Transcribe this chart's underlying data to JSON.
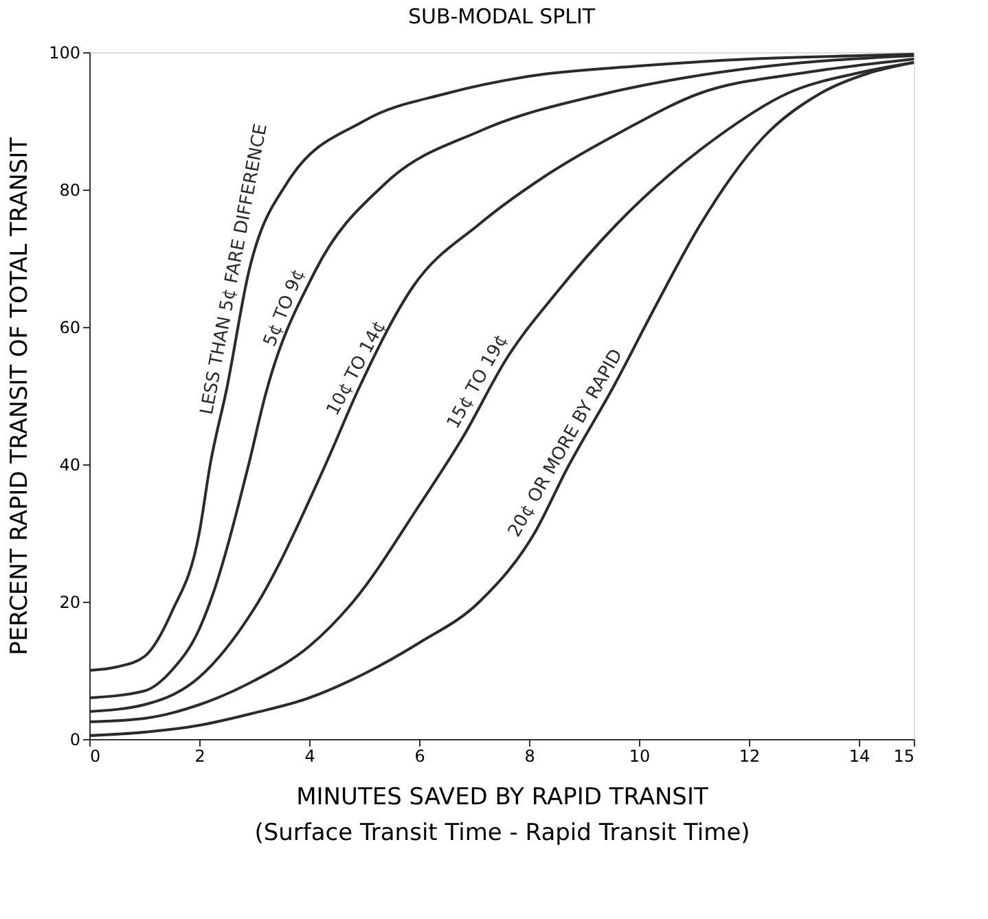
{
  "chart_data": {
    "type": "line",
    "title": "SUB-MODAL SPLIT",
    "xlabel": "MINUTES SAVED BY RAPID TRANSIT\n(Surface Transit Time - Rapid Transit Time)",
    "ylabel": "PERCENT RAPID TRANSIT OF TOTAL TRANSIT",
    "xlim": [
      0,
      15
    ],
    "ylim": [
      0,
      100
    ],
    "xticks": [
      0,
      2,
      4,
      6,
      8,
      10,
      12,
      14,
      15
    ],
    "yticks": [
      0,
      20,
      40,
      60,
      80,
      100
    ],
    "grid": false,
    "marker": "none",
    "line_style": "solid",
    "series": [
      {
        "color": "#2b2b2b",
        "x": [
          0,
          0.5,
          1,
          1.5,
          2,
          2.2,
          2.5,
          2.9,
          3.6,
          5,
          6.5,
          8,
          10,
          12,
          14,
          15
        ],
        "values": [
          10,
          10.5,
          12,
          18.5,
          30,
          40,
          51,
          68,
          81,
          90,
          94,
          96.5,
          98,
          99,
          99.5,
          99.7
        ]
      },
      {
        "color": "#2b2b2b",
        "x": [
          0,
          1,
          1.5,
          2,
          2.2,
          2.9,
          3.2,
          4.1,
          5.4,
          7.1,
          9.4,
          11,
          13,
          15
        ],
        "values": [
          6,
          7,
          10,
          16,
          20,
          40,
          50,
          68,
          81,
          88.5,
          94,
          96.5,
          98.5,
          99.5
        ]
      },
      {
        "color": "#2b2b2b",
        "x": [
          0,
          1,
          2,
          3,
          4.3,
          4.9,
          5.9,
          7.1,
          8.3,
          9.7,
          11.1,
          13,
          15
        ],
        "values": [
          4,
          5,
          9,
          19,
          40,
          51,
          66,
          75,
          82,
          88.5,
          94,
          97,
          99
        ]
      },
      {
        "color": "#2b2b2b",
        "x": [
          0,
          1,
          2,
          3,
          4,
          4.8,
          6,
          6.8,
          7.6,
          8.5,
          9.6,
          11.4,
          12.7,
          14,
          15
        ],
        "values": [
          2.5,
          3,
          5,
          8.5,
          13.5,
          20,
          34,
          44,
          55.5,
          65,
          75,
          87.5,
          94,
          97,
          98.5
        ]
      },
      {
        "color": "#2b2b2b",
        "x": [
          0,
          1,
          2,
          3,
          4,
          5,
          6,
          7.1,
          8.1,
          8.7,
          9.55,
          10.3,
          11.1,
          12.25,
          13.3,
          14.2,
          15
        ],
        "values": [
          0.5,
          1,
          2,
          3.8,
          6,
          9.5,
          14,
          20,
          30,
          39.5,
          51.5,
          63,
          74.7,
          87.5,
          94,
          97,
          98.5
        ]
      }
    ],
    "annotations": [
      {
        "text": "LESS THAN 5¢ FARE DIFFERENCE",
        "x": 2.9,
        "y": 68
      },
      {
        "text": "5¢ TO 9¢",
        "x": 3.8,
        "y": 62
      },
      {
        "text": "10¢ TO 14¢",
        "x": 5.1,
        "y": 53
      },
      {
        "text": "15¢ TO 19¢",
        "x": 7.3,
        "y": 51
      },
      {
        "text": "20¢ OR MORE BY RAPID",
        "x": 8.9,
        "y": 42
      }
    ]
  }
}
